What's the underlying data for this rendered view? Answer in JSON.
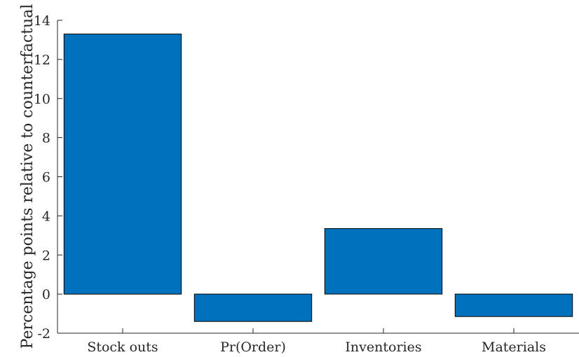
{
  "chart_data": {
    "type": "bar",
    "title": "",
    "xlabel": "",
    "ylabel": "Percentage points relative to counterfactual",
    "categories": [
      "Stock outs",
      "Pr(Order)",
      "Inventories",
      "Materials"
    ],
    "values": [
      13.3,
      -1.4,
      3.35,
      -1.15
    ],
    "ylim": [
      -2,
      14
    ],
    "yticks": [
      -2,
      0,
      2,
      4,
      6,
      8,
      10,
      12,
      14
    ],
    "ytick_labels": [
      "-2",
      "0",
      "2",
      "4",
      "6",
      "8",
      "10",
      "12",
      "14"
    ],
    "bar_color": "#0072BD",
    "bar_edge_color": "#000000",
    "grid": false,
    "legend": "none"
  }
}
